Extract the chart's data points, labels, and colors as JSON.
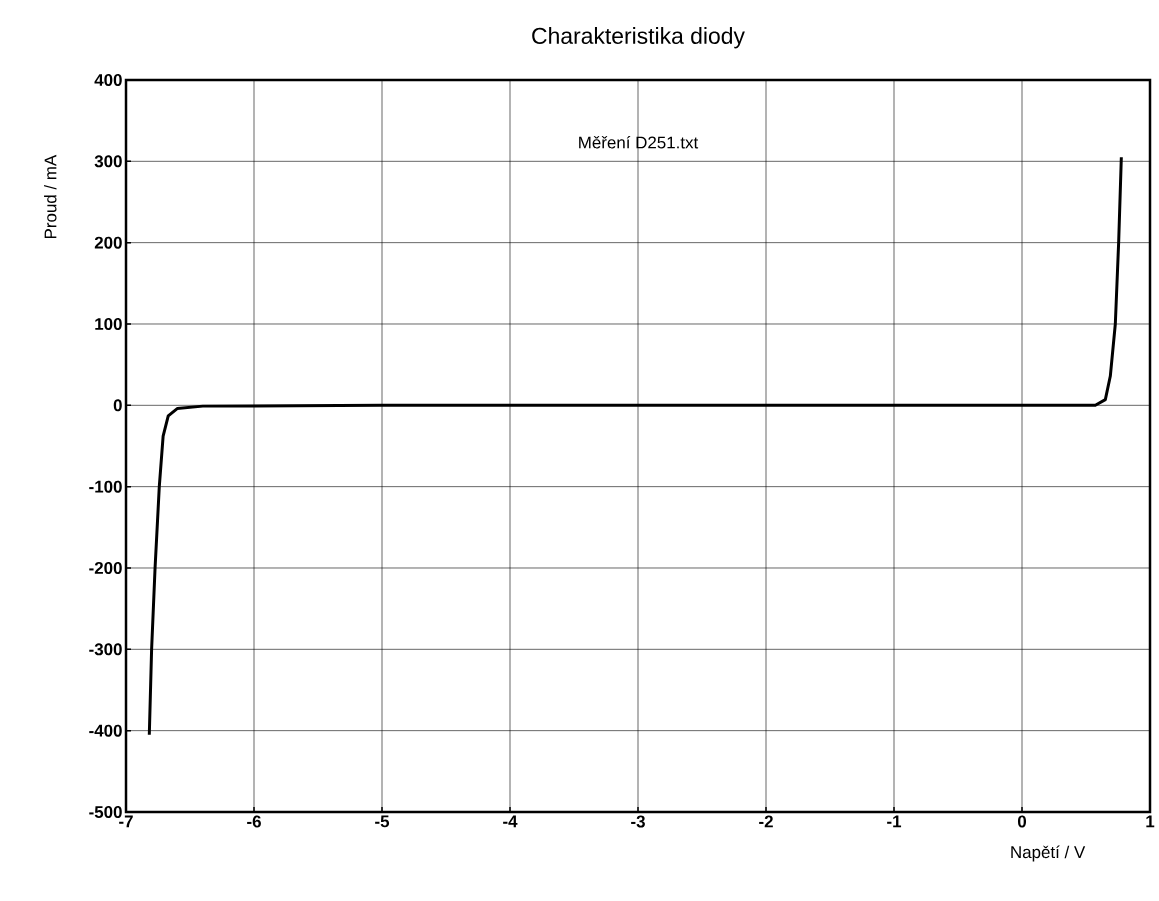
{
  "chart_data": {
    "type": "line",
    "title": "Charakteristika diody",
    "xlabel": "Napětí / V",
    "ylabel": "Proud / mA",
    "annotations": [
      "Měření D251.txt"
    ],
    "series": [
      {
        "color": "#000000",
        "x": [
          -6.818,
          -6.8,
          -6.773,
          -6.74,
          -6.71,
          -6.67,
          -6.6,
          -6.4,
          -5.0,
          -3.0,
          -1.0,
          0.0,
          0.3,
          0.573,
          0.651,
          0.69,
          0.729,
          0.755,
          0.776
        ],
        "values": [
          -405,
          -300,
          -200,
          -100,
          -38,
          -13,
          -4,
          -1,
          0,
          0,
          0,
          0,
          0,
          0,
          7,
          36,
          100,
          200,
          305
        ]
      }
    ],
    "xlim": [
      -7,
      1
    ],
    "ylim": [
      -500,
      400
    ],
    "xticks": [
      -7,
      -6,
      -5,
      -4,
      -3,
      -2,
      -1,
      0,
      1
    ],
    "yticks": [
      -500,
      -400,
      -300,
      -200,
      -100,
      0,
      100,
      200,
      300,
      400
    ],
    "grid": true,
    "marker": "none",
    "line_style": "solid"
  }
}
